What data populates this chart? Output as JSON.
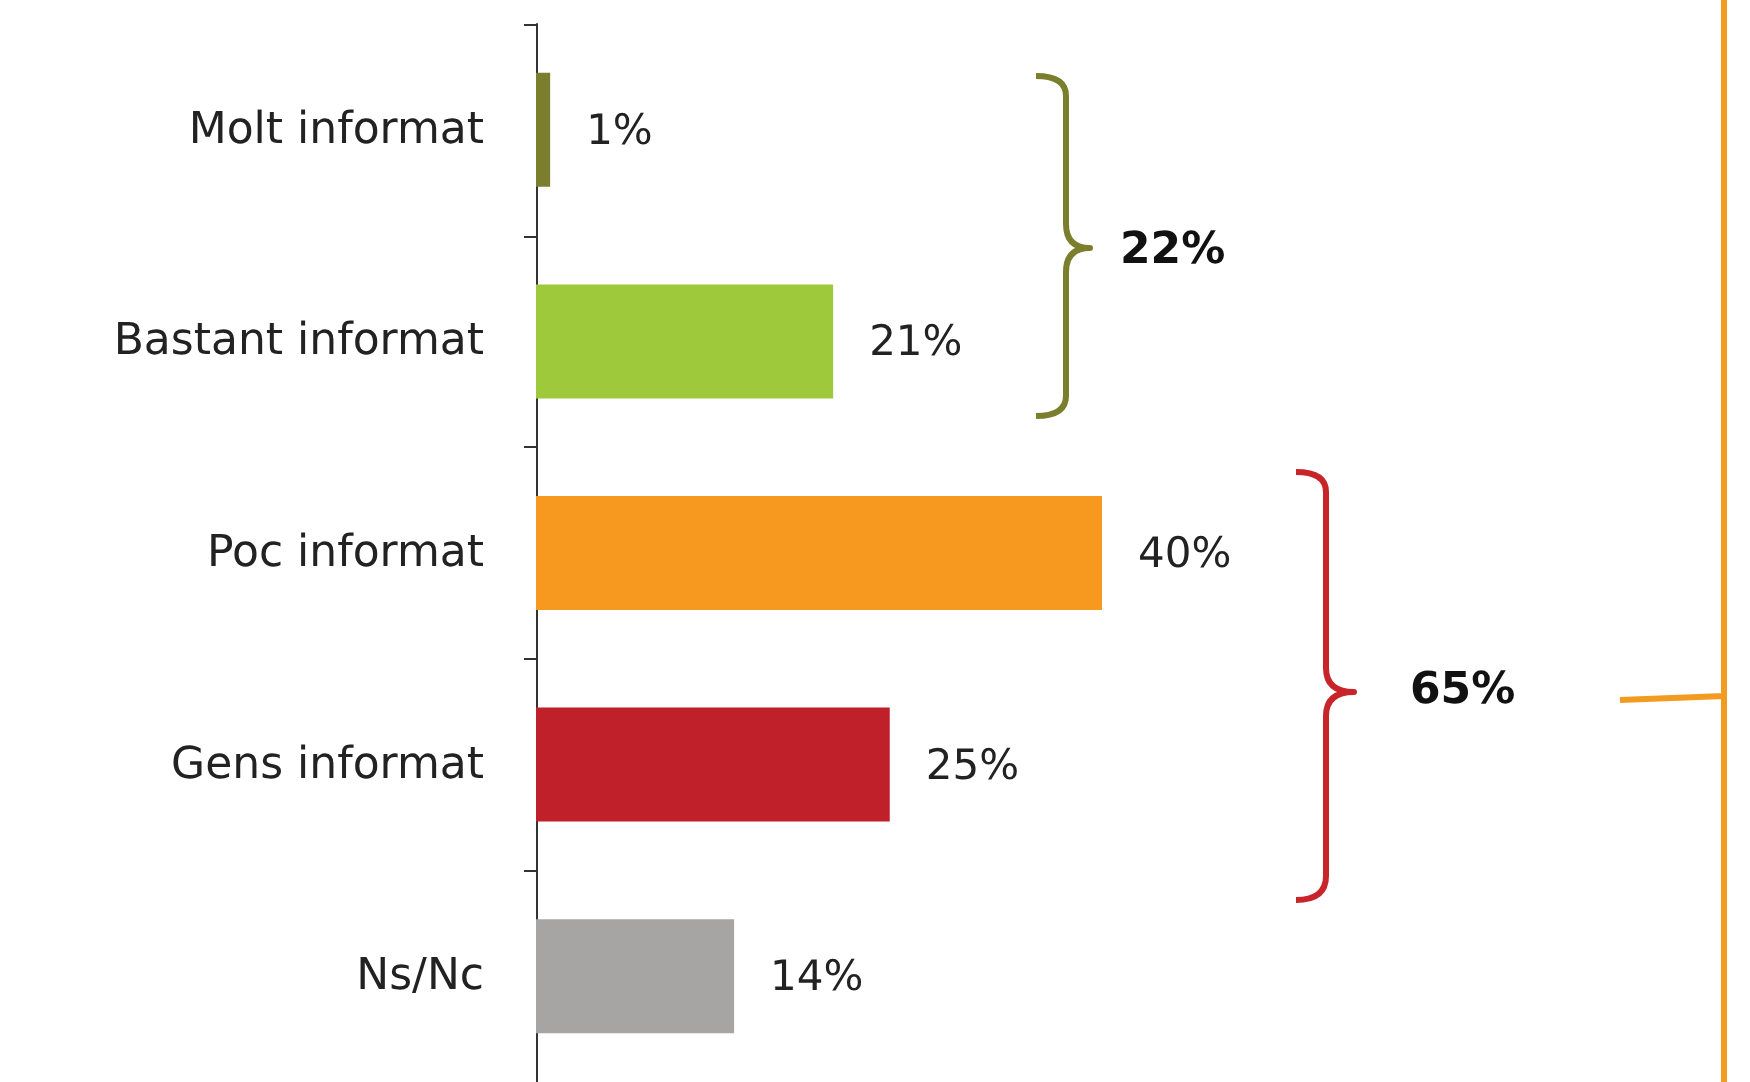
{
  "chart_data": {
    "type": "bar",
    "orientation": "horizontal",
    "categories": [
      "Molt informat",
      "Bastant informat",
      "Poc informat",
      "Gens informat",
      "Ns/Nc"
    ],
    "values": [
      1,
      21,
      40,
      25,
      14
    ],
    "colors": [
      "#7b7f2d",
      "#9dc93b",
      "#f7991f",
      "#c0202a",
      "#a6a5a3"
    ],
    "value_labels": [
      "1%",
      "21%",
      "40%",
      "25%",
      "14%"
    ],
    "annotations": [
      "22%",
      "65%"
    ]
  }
}
